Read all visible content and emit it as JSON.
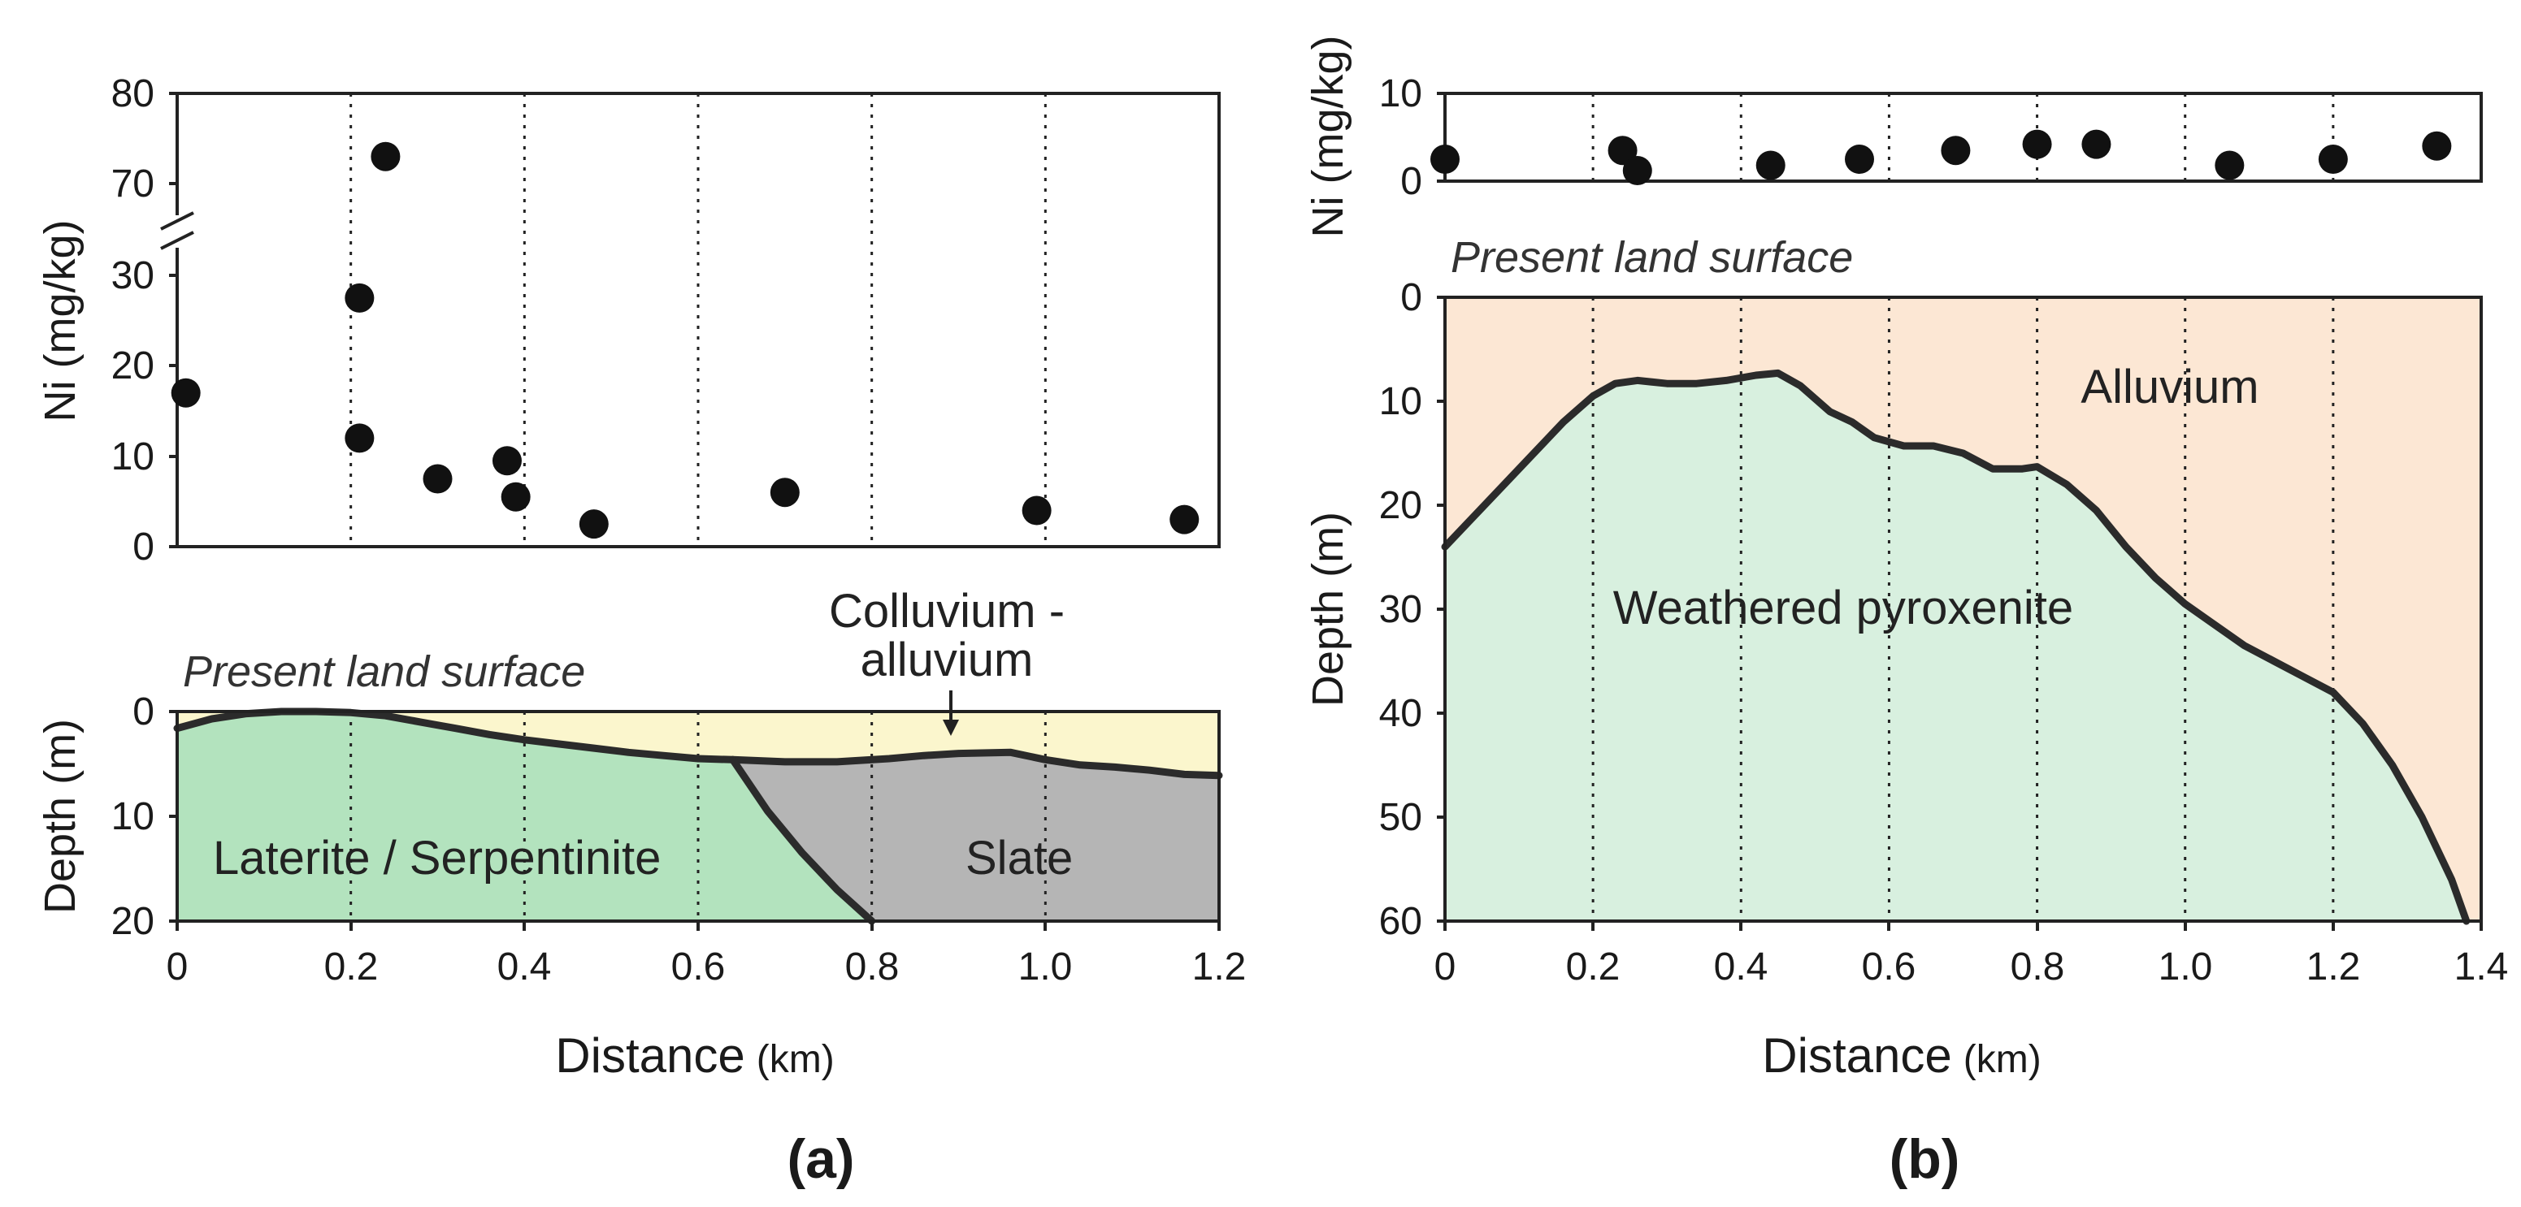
{
  "colors": {
    "laterite_fill": "#b3e3be",
    "slate_fill": "#b5b5b5",
    "colluvium_fill": "#fbf6cd",
    "alluvium_fill": "#fce7d4",
    "pyroxenite_fill": "#d8f0df",
    "line": "#2b2b2b",
    "points": "#111111"
  },
  "chart_data": [
    {
      "id": "a_ni",
      "panel": "(a)",
      "type": "scatter",
      "ylabel": "Ni (mg/kg)",
      "xlim": [
        0,
        1.2
      ],
      "ylim_lower": [
        0,
        30
      ],
      "ylim_upper": [
        70,
        80
      ],
      "axis_break": true,
      "yticks_lower": [
        "0",
        "10",
        "20",
        "30"
      ],
      "yticks_upper": [
        "70",
        "80"
      ],
      "grid_x": [
        0.2,
        0.4,
        0.6,
        0.8,
        1.0
      ],
      "x": [
        0.01,
        0.21,
        0.21,
        0.24,
        0.3,
        0.38,
        0.39,
        0.48,
        0.7,
        0.99,
        1.16
      ],
      "y": [
        17,
        12,
        27.5,
        73,
        7.5,
        9.5,
        5.5,
        2.5,
        6,
        4,
        3
      ]
    },
    {
      "id": "a_profile",
      "panel": "(a)",
      "type": "area",
      "annotation": "Present land surface",
      "ylabel": "Depth (m)",
      "xlabel": "Distance",
      "xlabel_unit": "(km)",
      "xlim": [
        0,
        1.2
      ],
      "ylim": [
        0,
        20
      ],
      "y_inverted": true,
      "xticks": [
        "0",
        "0.2",
        "0.4",
        "0.6",
        "0.8",
        "1.0",
        "1.2"
      ],
      "yticks": [
        "0",
        "10",
        "20"
      ],
      "grid_x": [
        0.2,
        0.4,
        0.6,
        0.8,
        1.0
      ],
      "labels": {
        "laterite": "Laterite / Serpentinite",
        "slate": "Slate",
        "colluvium": "Colluvium -",
        "colluvium2": "alluvium"
      },
      "surface_x": [
        0,
        0.04,
        0.08,
        0.12,
        0.16,
        0.2,
        0.24,
        0.28,
        0.32,
        0.36,
        0.4,
        0.44,
        0.48,
        0.52,
        0.56,
        0.6,
        0.64
      ],
      "surface_depth": [
        1.6,
        0.7,
        0.2,
        0.0,
        0.0,
        0.1,
        0.4,
        1.0,
        1.6,
        2.2,
        2.7,
        3.1,
        3.5,
        3.9,
        4.2,
        4.5,
        4.6
      ],
      "slate_top_x": [
        0.64,
        0.7,
        0.76,
        0.82,
        0.86,
        0.9,
        0.96,
        1.0,
        1.04,
        1.08,
        1.12,
        1.16,
        1.2
      ],
      "slate_top_depth": [
        4.6,
        4.8,
        4.8,
        4.5,
        4.2,
        4.0,
        3.9,
        4.6,
        5.1,
        5.3,
        5.6,
        6.0,
        6.1
      ],
      "contact_x": [
        0.64,
        0.68,
        0.72,
        0.76,
        0.8
      ],
      "contact_depth": [
        4.6,
        9.5,
        13.5,
        17.0,
        20.0
      ]
    },
    {
      "id": "b_ni",
      "panel": "(b)",
      "type": "scatter",
      "ylabel": "Ni (mg/kg)",
      "xlim": [
        0,
        1.4
      ],
      "ylim": [
        0,
        10
      ],
      "yticks": [
        "0",
        "10"
      ],
      "grid_x": [
        0.2,
        0.4,
        0.6,
        0.8,
        1.0,
        1.2
      ],
      "x": [
        0.0,
        0.24,
        0.26,
        0.44,
        0.56,
        0.69,
        0.8,
        0.88,
        1.06,
        1.2,
        1.34
      ],
      "y": [
        2.5,
        3.5,
        1.2,
        1.8,
        2.5,
        3.5,
        4.2,
        4.2,
        1.8,
        2.5,
        4.0
      ]
    },
    {
      "id": "b_profile",
      "panel": "(b)",
      "type": "area",
      "annotation": "Present land surface",
      "ylabel": "Depth (m)",
      "xlabel": "Distance",
      "xlabel_unit": "(km)",
      "xlim": [
        0,
        1.4
      ],
      "ylim": [
        0,
        60
      ],
      "y_inverted": true,
      "xticks": [
        "0",
        "0.2",
        "0.4",
        "0.6",
        "0.8",
        "1.0",
        "1.2",
        "1.4"
      ],
      "yticks": [
        "0",
        "10",
        "20",
        "30",
        "40",
        "50",
        "60"
      ],
      "grid_x": [
        0.2,
        0.4,
        0.6,
        0.8,
        1.0,
        1.2
      ],
      "labels": {
        "alluvium": "Alluvium",
        "pyroxenite": "Weathered pyroxenite"
      },
      "boundary_x": [
        0,
        0.04,
        0.08,
        0.12,
        0.16,
        0.2,
        0.23,
        0.26,
        0.3,
        0.34,
        0.38,
        0.42,
        0.45,
        0.48,
        0.52,
        0.55,
        0.58,
        0.62,
        0.66,
        0.7,
        0.74,
        0.78,
        0.8,
        0.84,
        0.88,
        0.92,
        0.96,
        1.0,
        1.04,
        1.08,
        1.12,
        1.16,
        1.2,
        1.24,
        1.28,
        1.32,
        1.36,
        1.38
      ],
      "boundary_depth": [
        24,
        21,
        18,
        15,
        12,
        9.5,
        8.3,
        8.0,
        8.3,
        8.3,
        8.0,
        7.5,
        7.3,
        8.5,
        11.0,
        12.0,
        13.5,
        14.3,
        14.3,
        15.0,
        16.5,
        16.5,
        16.3,
        18.0,
        20.5,
        24.0,
        27.0,
        29.5,
        31.5,
        33.5,
        35.0,
        36.5,
        38.0,
        41.0,
        45.0,
        50.0,
        56.0,
        60.0
      ]
    }
  ]
}
